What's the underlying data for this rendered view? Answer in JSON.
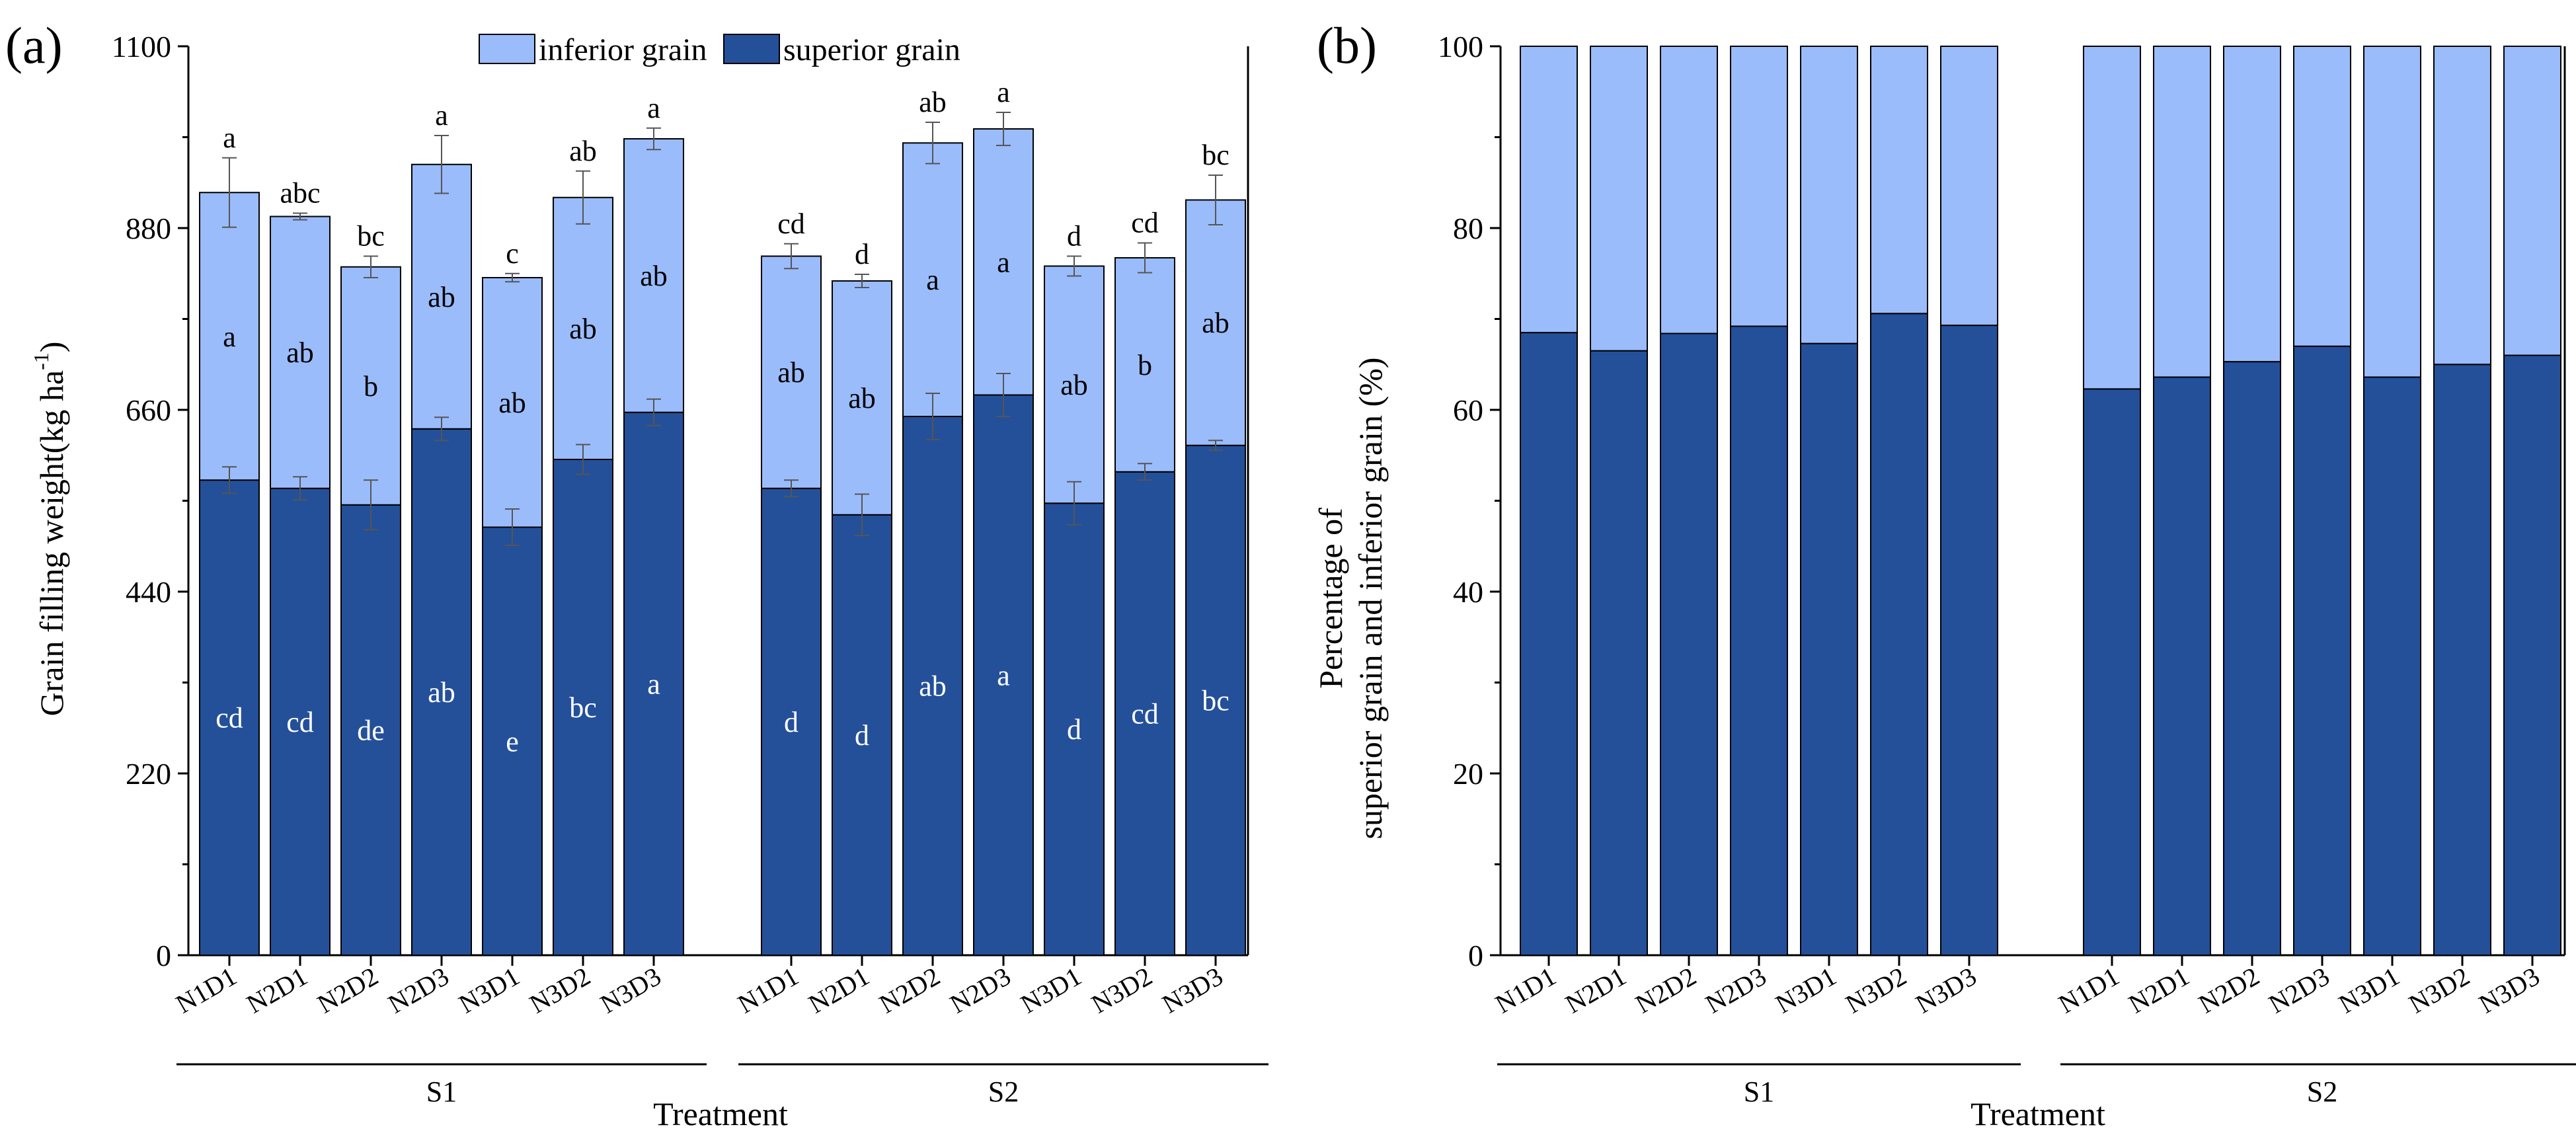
{
  "colors": {
    "superior": "#24509a",
    "inferior": "#9bbcfb",
    "error_bar": "#555555",
    "axis": "#000000"
  },
  "chart_data": [
    {
      "panel": "(a)",
      "type": "bar",
      "stacked": true,
      "title": "",
      "xlabel": "Treatment",
      "ylabel": "Grain filling weight(kg ha-1)",
      "ylabel_main": "Grain filling weight(kg ha",
      "ylabel_sup": "-1",
      "ylabel_close": ")",
      "ylim": [
        0,
        1100
      ],
      "yticks": [
        "0",
        "220",
        "440",
        "660",
        "880",
        "1100"
      ],
      "groups": [
        "S1",
        "S2"
      ],
      "categories": [
        "N1D1",
        "N2D1",
        "N2D2",
        "N2D3",
        "N3D1",
        "N3D2",
        "N3D3"
      ],
      "legend": {
        "inferior": "inferior grain",
        "superior": "superior grain",
        "position": "top"
      },
      "series": [
        {
          "name": "superior grain",
          "values": {
            "S1": [
              575,
              565,
              545,
              637,
              518,
              600,
              657
            ],
            "S2": [
              565,
              533,
              652,
              678,
              547,
              585,
              617
            ]
          },
          "errors": {
            "S1": [
              16,
              14,
              30,
              14,
              22,
              18,
              16
            ],
            "S2": [
              10,
              25,
              28,
              26,
              26,
              10,
              6
            ]
          },
          "letters": {
            "S1": [
              "cd",
              "cd",
              "de",
              "ab",
              "e",
              "bc",
              "a"
            ],
            "S2": [
              "d",
              "d",
              "ab",
              "a",
              "d",
              "cd",
              "bc"
            ]
          }
        },
        {
          "name": "inferior grain",
          "values": {
            "S1": [
              348,
              329,
              288,
              320,
              302,
              317,
              331
            ],
            "S2": [
              281,
              283,
              331,
              322,
              287,
              259,
              297
            ]
          },
          "totals": {
            "S1": [
              923,
              894,
              833,
              957,
              820,
              917,
              988
            ],
            "S2": [
              846,
              816,
              983,
              1000,
              834,
              844,
              914
            ]
          },
          "errors": {
            "S1": [
              42,
              4,
              13,
              35,
              5,
              32,
              13
            ],
            "S2": [
              15,
              8,
              25,
              20,
              12,
              18,
              30
            ]
          },
          "letters": {
            "S1": [
              "a",
              "ab",
              "b",
              "ab",
              "ab",
              "ab",
              "ab"
            ],
            "S2": [
              "ab",
              "ab",
              "a",
              "a",
              "ab",
              "b",
              "ab"
            ]
          },
          "total_letters": {
            "S1": [
              "a",
              "abc",
              "bc",
              "a",
              "c",
              "ab",
              "a"
            ],
            "S2": [
              "cd",
              "d",
              "ab",
              "a",
              "d",
              "cd",
              "bc"
            ]
          }
        }
      ]
    },
    {
      "panel": "(b)",
      "type": "bar",
      "stacked": true,
      "title": "",
      "xlabel": "Treatment",
      "ylabel": "Percentage of superior grain and inferior grain (%)",
      "ylabel_line1": "Percentage of",
      "ylabel_line2": "superior grain and inferior grain (%)",
      "ylim": [
        0,
        100
      ],
      "yticks": [
        "0",
        "20",
        "40",
        "60",
        "80",
        "100"
      ],
      "groups": [
        "S1",
        "S2"
      ],
      "categories": [
        "N1D1",
        "N2D1",
        "N2D2",
        "N2D3",
        "N3D1",
        "N3D2",
        "N3D3"
      ],
      "series": [
        {
          "name": "superior grain",
          "values": {
            "S1": [
              68.5,
              66.5,
              68.4,
              69.2,
              67.3,
              70.6,
              69.3
            ],
            "S2": [
              62.3,
              63.6,
              65.3,
              67.0,
              63.6,
              65.0,
              66.0
            ]
          }
        },
        {
          "name": "inferior grain",
          "values": {
            "S1": [
              31.5,
              33.5,
              31.6,
              30.8,
              32.7,
              29.4,
              30.7
            ],
            "S2": [
              37.7,
              36.4,
              34.7,
              33.0,
              36.4,
              35.0,
              34.0
            ]
          }
        }
      ]
    }
  ]
}
